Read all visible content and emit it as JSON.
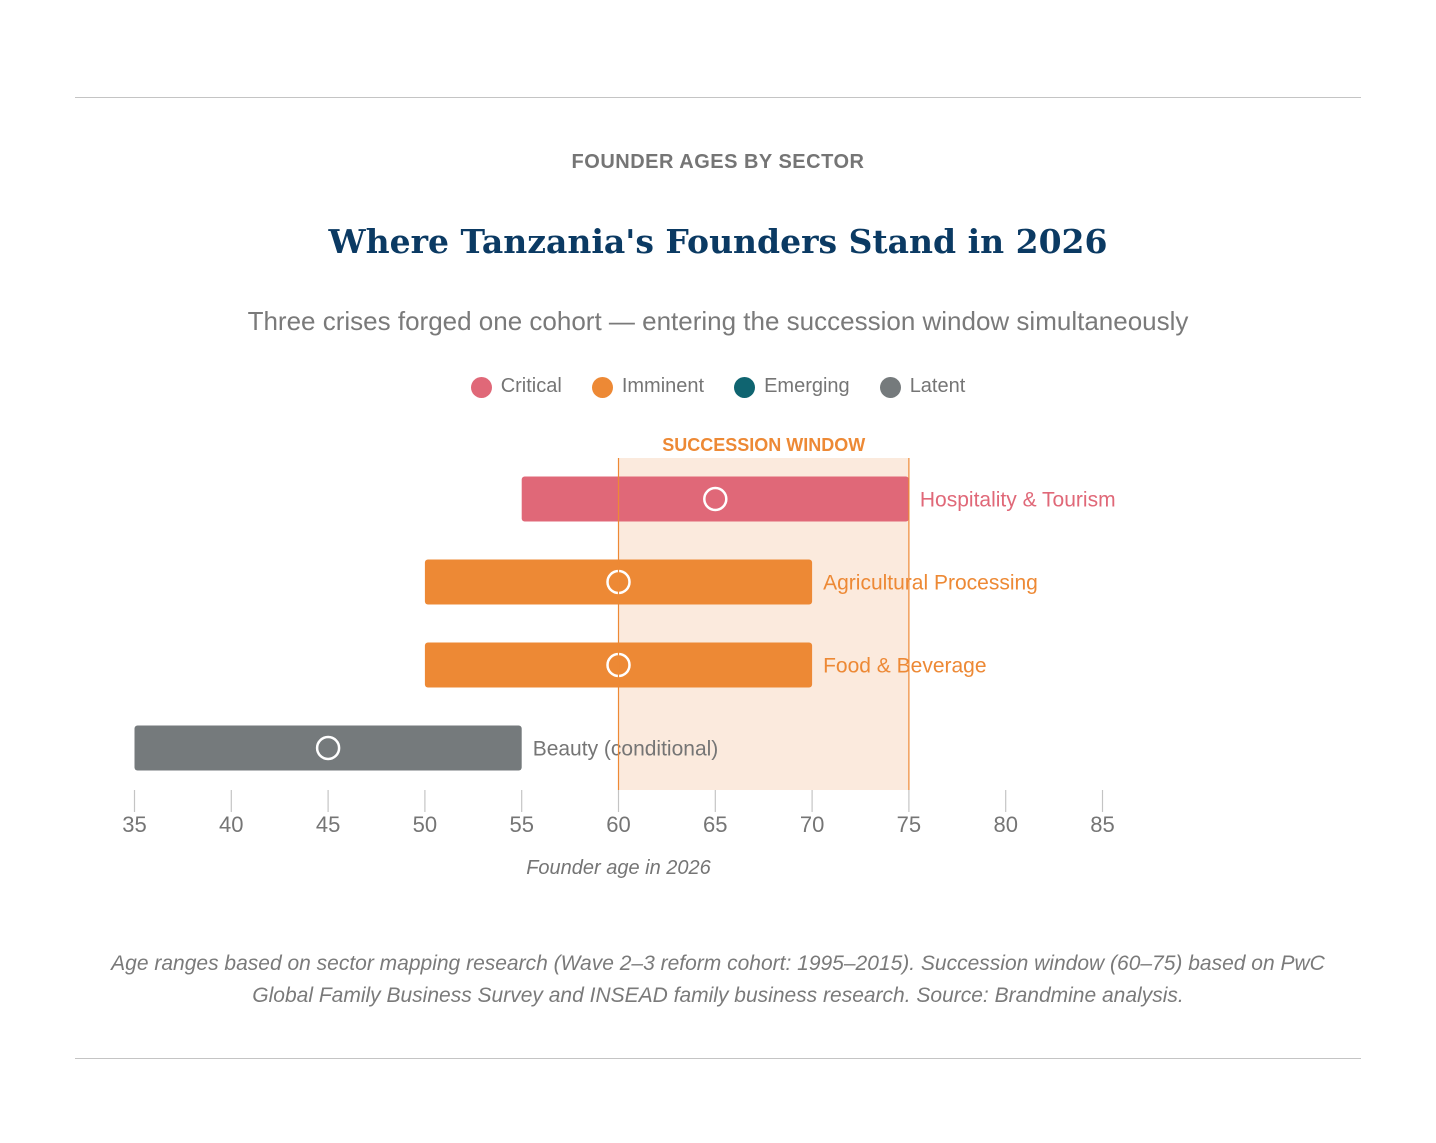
{
  "header": {
    "eyebrow": "FOUNDER AGES BY SECTOR",
    "title": "Where Tanzania's Founders Stand in 2026",
    "subtitle": "Three crises forged one cohort — entering the succession window simultaneously"
  },
  "legend": [
    {
      "label": "Critical",
      "color": "#e06878"
    },
    {
      "label": "Imminent",
      "color": "#ed8935"
    },
    {
      "label": "Emerging",
      "color": "#0f6470"
    },
    {
      "label": "Latent",
      "color": "#757a7c"
    }
  ],
  "chart_data": {
    "type": "bar",
    "orientation": "horizontal-range",
    "xlabel": "Founder age in 2026",
    "xlim": [
      35,
      85
    ],
    "xticks": [
      35,
      40,
      45,
      50,
      55,
      60,
      65,
      70,
      75,
      80,
      85
    ],
    "window": {
      "label": "SUCCESSION WINDOW",
      "start": 60,
      "end": 75,
      "color": "#ed8935"
    },
    "series": [
      {
        "category": "Hospitality & Tourism",
        "status": "Critical",
        "min": 55,
        "max": 75,
        "marker": 65,
        "color": "#e06878"
      },
      {
        "category": "Agricultural Processing",
        "status": "Imminent",
        "min": 50,
        "max": 70,
        "marker": 60,
        "color": "#ed8935"
      },
      {
        "category": "Food & Beverage",
        "status": "Imminent",
        "min": 50,
        "max": 70,
        "marker": 60,
        "color": "#ed8935"
      },
      {
        "category": "Beauty (conditional)",
        "status": "Latent",
        "min": 35,
        "max": 55,
        "marker": 45,
        "color": "#757a7c"
      }
    ],
    "grid": false,
    "legend_position": "top-center"
  },
  "footnote": {
    "line1": "Age ranges based on sector mapping research (Wave 2–3 reform cohort: 1995–2015). Succession window (60–75) based on PwC",
    "line2": "Global Family Business Survey and INSEAD family business research. Source: Brandmine analysis."
  }
}
